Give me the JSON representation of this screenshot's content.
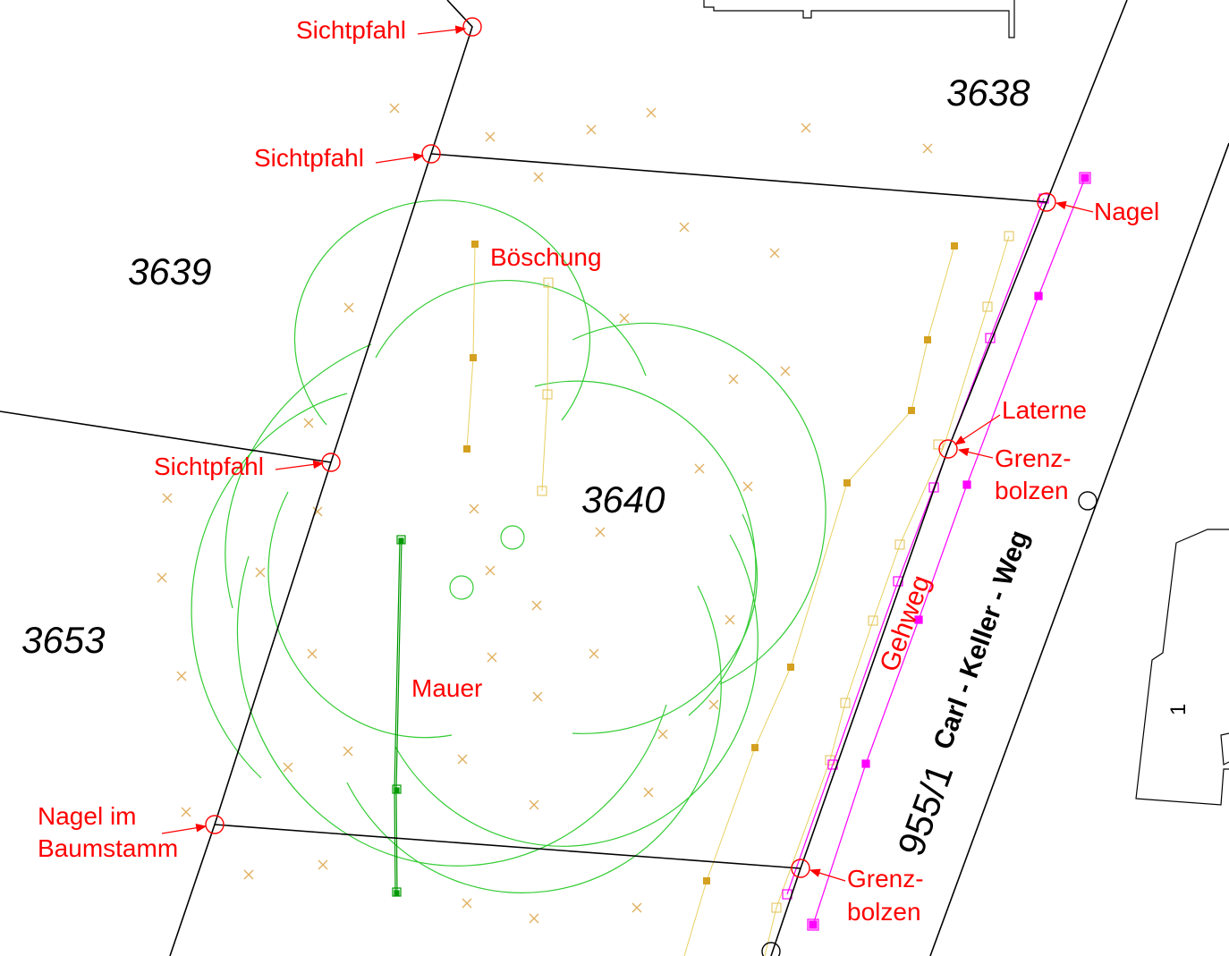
{
  "colors": {
    "boundary": "#000000",
    "labels": "#ff0000",
    "trees": "#33cc33",
    "wall": "#009900",
    "embankment": "#d4a020",
    "embankment_light": "#e8d060",
    "terrain_marks": "#e0b060",
    "sidewalk": "#ff00ff"
  },
  "parcels": [
    "3638",
    "3639",
    "3640",
    "3653"
  ],
  "labels": {
    "sichtpfahl_top": "Sichtpfahl",
    "sichtpfahl_mid": "Sichtpfahl",
    "sichtpfahl_left": "Sichtpfahl",
    "boeschung": "Böschung",
    "nagel": "Nagel",
    "laterne": "Laterne",
    "grenzbolzen_1a": "Grenz-",
    "grenzbolzen_1b": "bolzen",
    "grenzbolzen_2a": "Grenz-",
    "grenzbolzen_2b": "bolzen",
    "mauer": "Mauer",
    "nagel_baum_a": "Nagel im",
    "nagel_baum_b": "Baumstamm",
    "gehweg": "Gehweg"
  },
  "street": {
    "number": "955/1",
    "name": "Carl - Keller - Weg"
  },
  "house_number": "1",
  "icons": {
    "boundary_point": "circle-marker-icon",
    "terrain_point": "cross-marker-icon",
    "survey_point": "square-marker-icon"
  }
}
